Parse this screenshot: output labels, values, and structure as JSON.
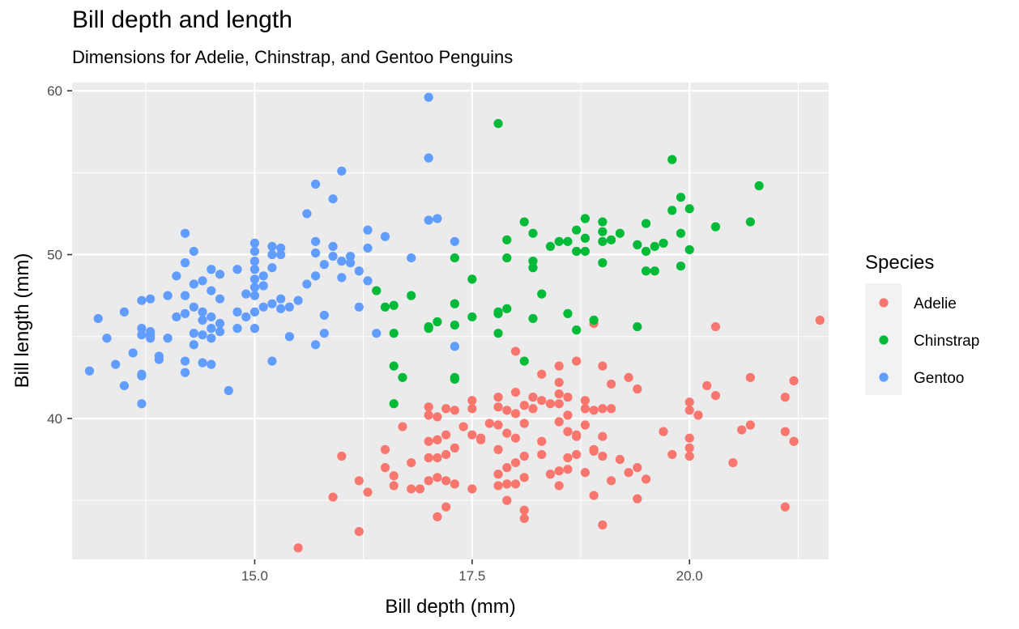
{
  "chart_data": {
    "type": "scatter",
    "title": "Bill depth and length",
    "subtitle": "Dimensions for Adelie, Chinstrap, and Gentoo Penguins",
    "xlabel": "Bill depth (mm)",
    "ylabel": "Bill length (mm)",
    "xlim": [
      12.9,
      21.6
    ],
    "ylim": [
      31.4,
      60.5
    ],
    "x_ticks": [
      15.0,
      17.5,
      20.0
    ],
    "x_tick_labels": [
      "15.0",
      "17.5",
      "20.0"
    ],
    "y_ticks": [
      40,
      50,
      60
    ],
    "y_tick_labels": [
      "40",
      "50",
      "60"
    ],
    "grid": true,
    "legend": {
      "title": "Species",
      "position": "right"
    },
    "series": [
      {
        "name": "Adelie",
        "color": "#F8766D",
        "points": [
          [
            21.5,
            46.0
          ],
          [
            21.2,
            42.3
          ],
          [
            21.2,
            38.6
          ],
          [
            21.1,
            41.3
          ],
          [
            21.1,
            39.2
          ],
          [
            21.1,
            34.6
          ],
          [
            20.7,
            42.5
          ],
          [
            20.7,
            39.6
          ],
          [
            20.6,
            39.3
          ],
          [
            20.5,
            37.3
          ],
          [
            20.3,
            45.6
          ],
          [
            20.3,
            41.4
          ],
          [
            20.2,
            42.0
          ],
          [
            20.1,
            40.2
          ],
          [
            20.0,
            41.0
          ],
          [
            20.0,
            38.8
          ],
          [
            20.0,
            38.2
          ],
          [
            20.0,
            37.7
          ],
          [
            19.8,
            37.8
          ],
          [
            19.7,
            39.2
          ],
          [
            19.5,
            36.3
          ],
          [
            19.4,
            41.8
          ],
          [
            19.4,
            37.0
          ],
          [
            19.4,
            35.1
          ],
          [
            19.3,
            36.7
          ],
          [
            19.3,
            42.5
          ],
          [
            19.2,
            37.5
          ],
          [
            19.1,
            40.6
          ],
          [
            19.1,
            42.1
          ],
          [
            19.1,
            36.2
          ],
          [
            19.0,
            43.2
          ],
          [
            19.0,
            40.6
          ],
          [
            19.0,
            38.9
          ],
          [
            19.0,
            37.7
          ],
          [
            19.0,
            33.5
          ],
          [
            18.9,
            45.8
          ],
          [
            18.9,
            40.5
          ],
          [
            18.9,
            38.1
          ],
          [
            18.9,
            35.3
          ],
          [
            18.8,
            41.1
          ],
          [
            18.8,
            40.6
          ],
          [
            18.8,
            39.6
          ],
          [
            18.8,
            36.7
          ],
          [
            18.7,
            38.9
          ],
          [
            18.7,
            37.8
          ],
          [
            18.7,
            39.0
          ],
          [
            18.6,
            41.3
          ],
          [
            18.6,
            39.2
          ],
          [
            18.6,
            37.6
          ],
          [
            18.6,
            36.9
          ],
          [
            18.5,
            43.2
          ],
          [
            18.5,
            42.2
          ],
          [
            18.5,
            41.5
          ],
          [
            18.5,
            39.8
          ],
          [
            18.5,
            36.8
          ],
          [
            18.5,
            35.9
          ],
          [
            18.4,
            40.9
          ],
          [
            18.4,
            36.6
          ],
          [
            18.3,
            42.7
          ],
          [
            18.3,
            41.1
          ],
          [
            18.3,
            38.6
          ],
          [
            18.3,
            37.8
          ],
          [
            18.2,
            41.3
          ],
          [
            18.2,
            40.6
          ],
          [
            18.1,
            40.8
          ],
          [
            18.1,
            39.7
          ],
          [
            18.1,
            37.7
          ],
          [
            18.1,
            36.4
          ],
          [
            18.1,
            34.4
          ],
          [
            18.1,
            33.9
          ],
          [
            18.0,
            44.1
          ],
          [
            18.0,
            41.6
          ],
          [
            18.0,
            40.3
          ],
          [
            18.0,
            38.8
          ],
          [
            18.0,
            37.3
          ],
          [
            18.0,
            36.0
          ],
          [
            17.9,
            40.5
          ],
          [
            17.9,
            39.1
          ],
          [
            17.9,
            37.0
          ],
          [
            17.9,
            36.0
          ],
          [
            17.9,
            35.0
          ],
          [
            17.8,
            40.7
          ],
          [
            17.8,
            39.6
          ],
          [
            17.8,
            38.1
          ],
          [
            17.8,
            36.6
          ],
          [
            17.8,
            35.9
          ],
          [
            17.7,
            39.7
          ],
          [
            17.6,
            38.7
          ],
          [
            17.6,
            38.8
          ],
          [
            17.5,
            40.6
          ],
          [
            17.5,
            41.1
          ],
          [
            17.5,
            39.0
          ],
          [
            17.5,
            35.7
          ],
          [
            17.4,
            39.5
          ],
          [
            17.3,
            40.5
          ],
          [
            17.3,
            38.2
          ],
          [
            17.3,
            36.0
          ],
          [
            17.2,
            40.6
          ],
          [
            17.2,
            39.0
          ],
          [
            17.2,
            37.8
          ],
          [
            17.2,
            36.2
          ],
          [
            17.2,
            34.6
          ],
          [
            17.1,
            40.1
          ],
          [
            17.1,
            38.7
          ],
          [
            17.1,
            37.6
          ],
          [
            17.1,
            36.4
          ],
          [
            17.1,
            34.0
          ],
          [
            17.0,
            40.7
          ],
          [
            17.0,
            40.2
          ],
          [
            17.0,
            38.6
          ],
          [
            17.0,
            37.6
          ],
          [
            17.0,
            36.2
          ],
          [
            16.9,
            35.7
          ],
          [
            16.8,
            37.3
          ],
          [
            16.8,
            35.7
          ],
          [
            16.6,
            36.5
          ],
          [
            16.6,
            35.9
          ],
          [
            16.5,
            38.1
          ],
          [
            16.5,
            37.0
          ],
          [
            16.2,
            36.2
          ],
          [
            16.2,
            33.1
          ],
          [
            16.3,
            35.5
          ],
          [
            16.0,
            37.7
          ],
          [
            15.9,
            35.2
          ],
          [
            15.5,
            32.1
          ],
          [
            16.7,
            39.5
          ],
          [
            18.6,
            40.2
          ],
          [
            18.9,
            38.0
          ],
          [
            18.7,
            43.5
          ],
          [
            17.8,
            41.3
          ],
          [
            18.5,
            40.9
          ],
          [
            20.0,
            40.5
          ]
        ]
      },
      {
        "name": "Chinstrap",
        "color": "#00BA38",
        "points": [
          [
            20.8,
            54.2
          ],
          [
            20.7,
            52.0
          ],
          [
            20.3,
            51.7
          ],
          [
            20.0,
            52.8
          ],
          [
            20.0,
            50.3
          ],
          [
            19.9,
            53.5
          ],
          [
            19.9,
            51.3
          ],
          [
            19.9,
            49.3
          ],
          [
            19.8,
            55.8
          ],
          [
            19.8,
            52.7
          ],
          [
            19.7,
            50.7
          ],
          [
            19.6,
            50.5
          ],
          [
            19.6,
            49.0
          ],
          [
            19.5,
            51.9
          ],
          [
            19.5,
            50.2
          ],
          [
            19.5,
            49.0
          ],
          [
            19.4,
            50.6
          ],
          [
            19.4,
            45.6
          ],
          [
            19.2,
            51.3
          ],
          [
            19.1,
            50.9
          ],
          [
            19.0,
            52.0
          ],
          [
            19.0,
            51.4
          ],
          [
            19.0,
            50.8
          ],
          [
            19.0,
            49.5
          ],
          [
            18.9,
            46.0
          ],
          [
            18.8,
            52.2
          ],
          [
            18.8,
            51.0
          ],
          [
            18.8,
            50.2
          ],
          [
            18.7,
            51.5
          ],
          [
            18.7,
            50.2
          ],
          [
            18.7,
            45.4
          ],
          [
            18.6,
            46.4
          ],
          [
            18.5,
            50.8
          ],
          [
            18.4,
            50.5
          ],
          [
            18.3,
            47.6
          ],
          [
            18.2,
            51.3
          ],
          [
            18.2,
            49.6
          ],
          [
            18.2,
            49.2
          ],
          [
            18.2,
            46.1
          ],
          [
            18.1,
            52.0
          ],
          [
            18.1,
            43.5
          ],
          [
            17.9,
            50.9
          ],
          [
            17.9,
            49.8
          ],
          [
            17.9,
            46.7
          ],
          [
            17.8,
            58.0
          ],
          [
            17.8,
            46.5
          ],
          [
            17.8,
            46.4
          ],
          [
            17.8,
            45.2
          ],
          [
            17.5,
            48.5
          ],
          [
            17.5,
            46.2
          ],
          [
            17.3,
            49.8
          ],
          [
            17.3,
            47.0
          ],
          [
            17.3,
            45.7
          ],
          [
            17.3,
            42.5
          ],
          [
            17.3,
            42.4
          ],
          [
            17.1,
            45.9
          ],
          [
            17.0,
            45.6
          ],
          [
            17.0,
            45.5
          ],
          [
            16.8,
            47.5
          ],
          [
            16.7,
            42.5
          ],
          [
            16.6,
            46.9
          ],
          [
            16.6,
            45.2
          ],
          [
            16.6,
            43.2
          ],
          [
            16.6,
            40.9
          ],
          [
            16.5,
            46.8
          ],
          [
            16.4,
            47.8
          ],
          [
            18.6,
            50.8
          ]
        ]
      },
      {
        "name": "Gentoo",
        "color": "#619CFF",
        "points": [
          [
            17.0,
            59.6
          ],
          [
            17.0,
            55.9
          ],
          [
            17.0,
            52.1
          ],
          [
            17.1,
            52.2
          ],
          [
            17.3,
            50.8
          ],
          [
            17.3,
            44.4
          ],
          [
            16.8,
            49.8
          ],
          [
            16.5,
            51.1
          ],
          [
            16.4,
            45.2
          ],
          [
            16.3,
            51.5
          ],
          [
            16.3,
            50.4
          ],
          [
            16.3,
            48.4
          ],
          [
            16.2,
            49.0
          ],
          [
            16.2,
            46.8
          ],
          [
            16.1,
            49.9
          ],
          [
            16.1,
            49.5
          ],
          [
            16.0,
            55.1
          ],
          [
            16.0,
            49.6
          ],
          [
            16.0,
            48.6
          ],
          [
            15.9,
            53.4
          ],
          [
            15.9,
            50.5
          ],
          [
            15.9,
            49.9
          ],
          [
            15.8,
            49.4
          ],
          [
            15.8,
            46.3
          ],
          [
            15.8,
            45.2
          ],
          [
            15.7,
            54.3
          ],
          [
            15.7,
            50.8
          ],
          [
            15.7,
            50.1
          ],
          [
            15.7,
            48.7
          ],
          [
            15.7,
            44.5
          ],
          [
            15.6,
            52.5
          ],
          [
            15.6,
            48.2
          ],
          [
            15.5,
            47.2
          ],
          [
            15.4,
            46.8
          ],
          [
            15.4,
            45.0
          ],
          [
            15.3,
            50.4
          ],
          [
            15.3,
            50.0
          ],
          [
            15.3,
            47.3
          ],
          [
            15.3,
            46.7
          ],
          [
            15.2,
            50.5
          ],
          [
            15.2,
            50.0
          ],
          [
            15.2,
            49.2
          ],
          [
            15.2,
            47.0
          ],
          [
            15.2,
            43.5
          ],
          [
            15.1,
            48.7
          ],
          [
            15.1,
            48.1
          ],
          [
            15.1,
            46.8
          ],
          [
            15.0,
            50.7
          ],
          [
            15.0,
            50.2
          ],
          [
            15.0,
            49.6
          ],
          [
            15.0,
            49.1
          ],
          [
            15.0,
            48.5
          ],
          [
            15.0,
            48.0
          ],
          [
            15.0,
            47.5
          ],
          [
            15.0,
            46.5
          ],
          [
            15.0,
            45.5
          ],
          [
            14.9,
            47.6
          ],
          [
            14.9,
            46.2
          ],
          [
            14.8,
            49.1
          ],
          [
            14.8,
            46.5
          ],
          [
            14.8,
            45.5
          ],
          [
            14.7,
            41.7
          ],
          [
            14.6,
            48.8
          ],
          [
            14.6,
            47.3
          ],
          [
            14.6,
            45.8
          ],
          [
            14.6,
            45.3
          ],
          [
            14.5,
            49.1
          ],
          [
            14.5,
            47.8
          ],
          [
            14.5,
            46.2
          ],
          [
            14.5,
            45.5
          ],
          [
            14.5,
            44.9
          ],
          [
            14.5,
            43.3
          ],
          [
            14.4,
            48.4
          ],
          [
            14.4,
            46.5
          ],
          [
            14.4,
            46.0
          ],
          [
            14.4,
            45.1
          ],
          [
            14.4,
            43.4
          ],
          [
            14.3,
            50.2
          ],
          [
            14.3,
            48.2
          ],
          [
            14.3,
            46.8
          ],
          [
            14.3,
            45.2
          ],
          [
            14.3,
            44.5
          ],
          [
            14.2,
            51.3
          ],
          [
            14.2,
            49.5
          ],
          [
            14.2,
            47.5
          ],
          [
            14.2,
            46.4
          ],
          [
            14.2,
            43.5
          ],
          [
            14.2,
            42.8
          ],
          [
            14.1,
            48.7
          ],
          [
            14.1,
            46.2
          ],
          [
            14.0,
            47.5
          ],
          [
            14.0,
            44.9
          ],
          [
            13.9,
            43.8
          ],
          [
            13.9,
            43.6
          ],
          [
            13.8,
            47.3
          ],
          [
            13.8,
            45.3
          ],
          [
            13.8,
            45.1
          ],
          [
            13.8,
            44.9
          ],
          [
            13.7,
            47.2
          ],
          [
            13.7,
            45.5
          ],
          [
            13.7,
            45.1
          ],
          [
            13.7,
            42.7
          ],
          [
            13.7,
            42.6
          ],
          [
            13.7,
            40.9
          ],
          [
            13.6,
            44.0
          ],
          [
            13.5,
            46.5
          ],
          [
            13.5,
            42.0
          ],
          [
            13.4,
            43.3
          ],
          [
            13.3,
            44.9
          ],
          [
            13.2,
            46.1
          ],
          [
            13.1,
            42.9
          ]
        ]
      }
    ]
  }
}
